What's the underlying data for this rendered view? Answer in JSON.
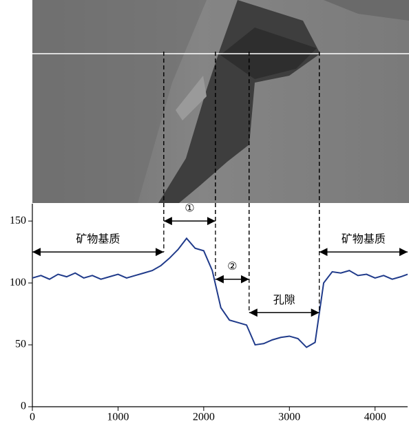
{
  "chart_data": {
    "type": "line",
    "x": [
      0,
      100,
      200,
      300,
      400,
      500,
      600,
      700,
      800,
      900,
      1000,
      1100,
      1200,
      1300,
      1400,
      1500,
      1600,
      1700,
      1800,
      1900,
      2000,
      2100,
      2200,
      2300,
      2400,
      2500,
      2600,
      2700,
      2800,
      2900,
      3000,
      3100,
      3200,
      3300,
      3400,
      3500,
      3600,
      3700,
      3800,
      3900,
      4000,
      4100,
      4200,
      4300,
      4380
    ],
    "series": [
      {
        "color": "#1f3a8a",
        "values": [
          104,
          106,
          103,
          107,
          105,
          108,
          104,
          106,
          103,
          105,
          107,
          104,
          106,
          108,
          110,
          114,
          120,
          127,
          136,
          128,
          126,
          110,
          80,
          70,
          68,
          66,
          50,
          51,
          54,
          56,
          57,
          55,
          48,
          52,
          100,
          109,
          108,
          110,
          106,
          107,
          104,
          106,
          103,
          105,
          107
        ]
      }
    ],
    "xlim": [
      0,
      4380
    ],
    "ylim": [
      0,
      164
    ],
    "xticks": [
      0,
      1000,
      2000,
      3000,
      4000
    ],
    "yticks": [
      0,
      50,
      100,
      150
    ],
    "annotations": [
      {
        "text": "矿物基质",
        "x": [
          0,
          1534
        ],
        "y": 125
      },
      {
        "text": "①",
        "x": [
          1534,
          2137
        ],
        "y": 150
      },
      {
        "text": "②",
        "x": [
          2137,
          2530
        ],
        "y": 103
      },
      {
        "text": "孔隙",
        "x": [
          2530,
          3349
        ],
        "y": 76
      },
      {
        "text": "矿物基质",
        "x": [
          3349,
          4380
        ],
        "y": 125
      }
    ]
  }
}
